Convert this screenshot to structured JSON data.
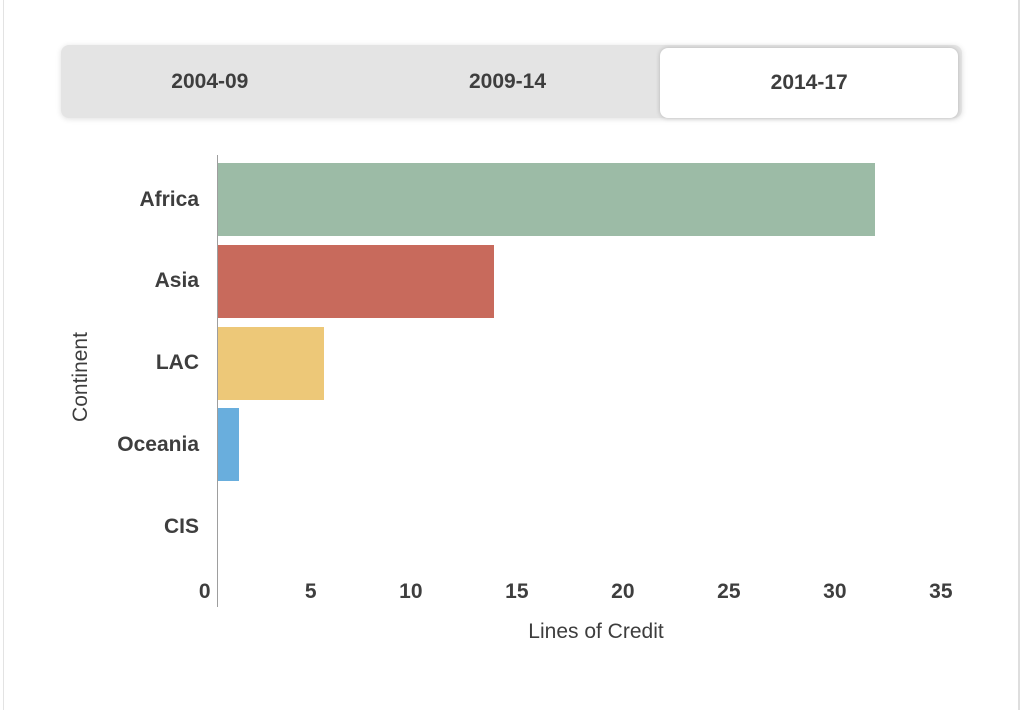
{
  "tabs": {
    "items": [
      {
        "label": "2004-09",
        "active": false
      },
      {
        "label": "2009-14",
        "active": false
      },
      {
        "label": "2014-17",
        "active": true
      }
    ]
  },
  "chart_data": {
    "type": "bar",
    "orientation": "horizontal",
    "title": "",
    "xlabel": "Lines of Credit",
    "ylabel": "Continent",
    "categories": [
      "Africa",
      "Asia",
      "LAC",
      "Oceania",
      "CIS"
    ],
    "values": [
      31,
      13,
      5,
      1,
      0
    ],
    "xlim": [
      0,
      35
    ],
    "xticks": [
      "0",
      "5",
      "10",
      "15",
      "20",
      "25",
      "30",
      "35"
    ],
    "bar_colors": [
      "#9cbba6",
      "#c86a5c",
      "#edc878",
      "#69aedd",
      "#cccccc"
    ],
    "grid": false,
    "legend": false,
    "colors": {
      "tab_background": "#e4e4e4",
      "active_tab_background": "#ffffff",
      "text": "#3e3e3e",
      "axis_line": "#9e9e9e"
    }
  }
}
